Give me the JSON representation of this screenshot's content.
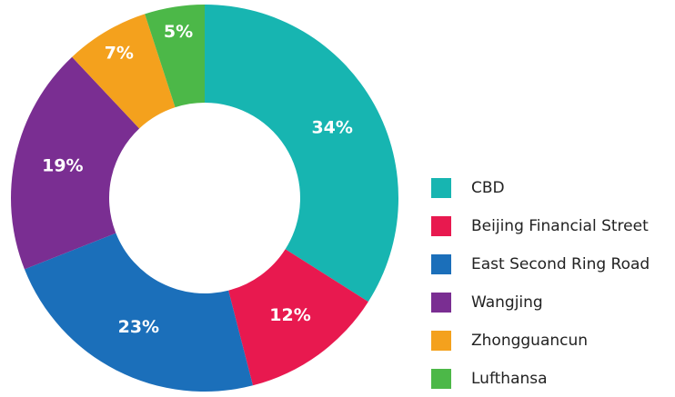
{
  "chart_data": {
    "type": "donut",
    "categories": [
      "CBD",
      "Beijing Financial Street",
      "East Second Ring Road",
      "Wangjing",
      "Zhongguancun",
      "Lufthansa"
    ],
    "values": [
      34,
      12,
      23,
      19,
      7,
      5
    ],
    "value_labels": [
      "34%",
      "12%",
      "23%",
      "19%",
      "7%",
      "5%"
    ],
    "colors": [
      "#17b5b1",
      "#e8194f",
      "#1b6fba",
      "#7a2e92",
      "#f4a11d",
      "#4cb848"
    ],
    "legend": "right"
  }
}
